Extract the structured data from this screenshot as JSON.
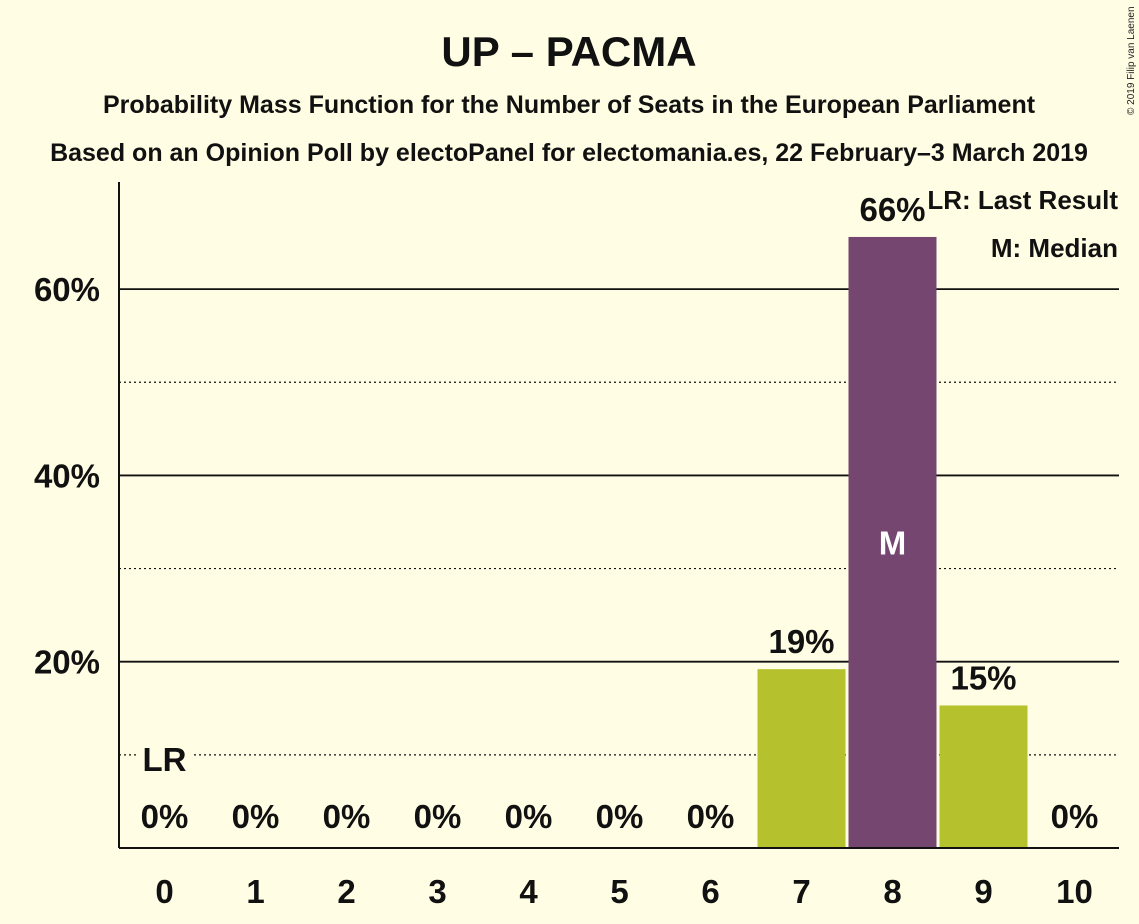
{
  "title": "UP – PACMA",
  "subtitle1": "Probability Mass Function for the Number of Seats in the European Parliament",
  "subtitle2": "Based on an Opinion Poll by electoPanel for electomania.es, 22 February–3 March 2019",
  "copyright": "© 2019 Filip van Laenen",
  "legend": {
    "last_result": "LR: Last Result",
    "median": "M: Median"
  },
  "colors": {
    "background": "#fffde3",
    "bar": "#b5c22e",
    "median_bar": "#744670",
    "text": "#111111"
  },
  "chart_data": {
    "type": "bar",
    "categories": [
      "0",
      "1",
      "2",
      "3",
      "4",
      "5",
      "6",
      "7",
      "8",
      "9",
      "10"
    ],
    "values": [
      0,
      0,
      0,
      0,
      0,
      0,
      0,
      19.2,
      65.6,
      15.3,
      0
    ],
    "value_labels": [
      "0%",
      "0%",
      "0%",
      "0%",
      "0%",
      "0%",
      "0%",
      "19%",
      "66%",
      "15%",
      "0%"
    ],
    "median_index": 8,
    "median_marker": "M",
    "last_result_index": 0,
    "last_result_marker": "LR",
    "ylim": [
      0,
      71.5
    ],
    "yticks_major": [
      20,
      40,
      60
    ],
    "ytick_labels": [
      "20%",
      "40%",
      "60%"
    ],
    "yticks_minor": [
      10,
      30,
      50
    ],
    "xlabel": "",
    "ylabel": ""
  }
}
